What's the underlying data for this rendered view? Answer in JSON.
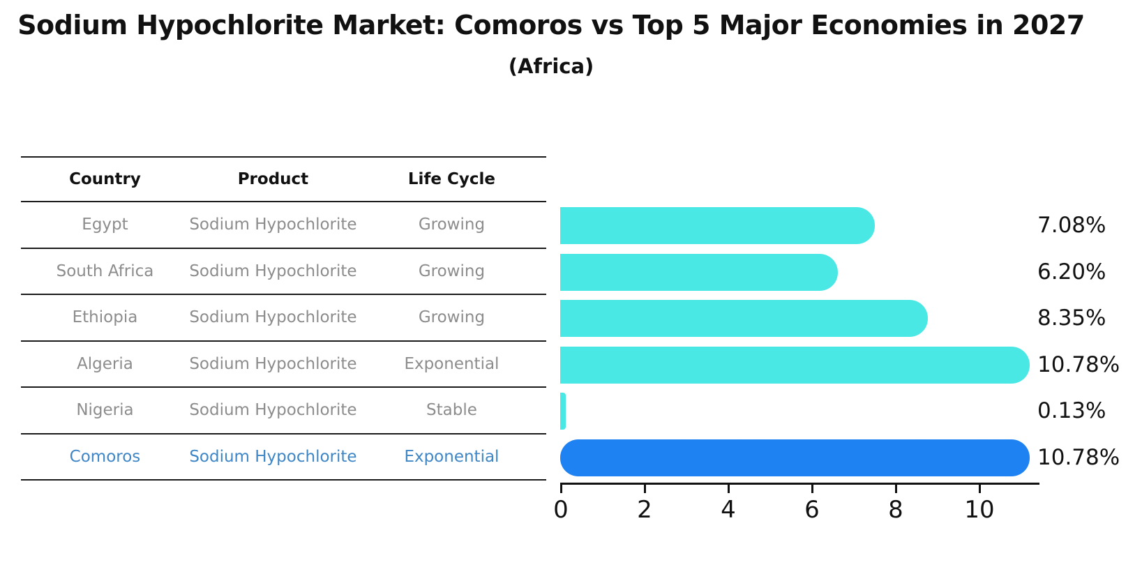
{
  "title": "Sodium Hypochlorite Market: Comoros vs Top 5 Major Economies in 2027",
  "subtitle": "(Africa)",
  "table": {
    "headers": [
      "Country",
      "Product",
      "Life Cycle"
    ],
    "rows": [
      {
        "country": "Egypt",
        "product": "Sodium Hypochlorite",
        "life_cycle": "Growing",
        "highlighted": false
      },
      {
        "country": "South Africa",
        "product": "Sodium Hypochlorite",
        "life_cycle": "Growing",
        "highlighted": false
      },
      {
        "country": "Ethiopia",
        "product": "Sodium Hypochlorite",
        "life_cycle": "Growing",
        "highlighted": false
      },
      {
        "country": "Algeria",
        "product": "Sodium Hypochlorite",
        "life_cycle": "Exponential",
        "highlighted": false
      },
      {
        "country": "Nigeria",
        "product": "Sodium Hypochlorite",
        "life_cycle": "Stable",
        "highlighted": false
      },
      {
        "country": "Comoros",
        "product": "Sodium Hypochlorite",
        "life_cycle": "Exponential",
        "highlighted": true
      }
    ]
  },
  "chart_data": {
    "type": "bar",
    "orientation": "horizontal",
    "title": "Sodium Hypochlorite Market: Comoros vs Top 5 Major Economies in 2027 (Africa)",
    "categories": [
      "Egypt",
      "South Africa",
      "Ethiopia",
      "Algeria",
      "Nigeria",
      "Comoros"
    ],
    "values": [
      7.08,
      6.2,
      8.35,
      10.78,
      0.13,
      10.78
    ],
    "value_labels": [
      "7.08%",
      "6.20%",
      "8.35%",
      "10.78%",
      "0.13%",
      "10.78%"
    ],
    "x_ticks": [
      "0",
      "2",
      "4",
      "6",
      "8",
      "10"
    ],
    "x_tick_values": [
      0,
      2,
      4,
      6,
      8,
      10
    ],
    "xlim": [
      0,
      11.45
    ],
    "grid": false,
    "legend": null,
    "highlight_index": 5
  },
  "colors": {
    "bar": "#4AE8E4",
    "highlight_bar": "#1E82F2",
    "highlight_text": "#3E86C6",
    "table_text": "#8c8c8c",
    "header_text": "#111111",
    "line": "#1a1a1a",
    "background": "#ffffff"
  }
}
